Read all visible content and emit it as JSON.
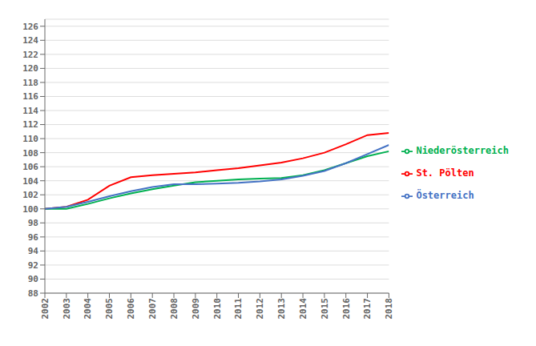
{
  "chart_data": {
    "type": "line",
    "x": [
      2002,
      2003,
      2004,
      2005,
      2006,
      2007,
      2008,
      2009,
      2010,
      2011,
      2012,
      2013,
      2014,
      2015,
      2016,
      2017,
      2018
    ],
    "series": [
      {
        "name": "St. Pölten",
        "color": "#ff0000",
        "values": [
          100.0,
          100.3,
          101.3,
          103.3,
          104.5,
          104.8,
          105.0,
          105.2,
          105.5,
          105.8,
          106.2,
          106.6,
          107.2,
          108.0,
          109.2,
          110.5,
          110.8
        ]
      },
      {
        "name": "Niederösterreich",
        "color": "#00b050",
        "values": [
          100.0,
          100.0,
          100.7,
          101.5,
          102.2,
          102.8,
          103.3,
          103.8,
          104.0,
          104.2,
          104.3,
          104.4,
          104.8,
          105.5,
          106.5,
          107.5,
          108.2
        ]
      },
      {
        "name": "Österreich",
        "color": "#4472c4",
        "values": [
          100.0,
          100.3,
          101.0,
          101.8,
          102.5,
          103.1,
          103.5,
          103.5,
          103.6,
          103.7,
          103.9,
          104.2,
          104.7,
          105.4,
          106.5,
          107.8,
          109.1
        ]
      }
    ],
    "xlim": [
      2002,
      2018
    ],
    "xticks": [
      2002,
      2003,
      2004,
      2005,
      2006,
      2007,
      2008,
      2009,
      2010,
      2011,
      2012,
      2013,
      2014,
      2015,
      2016,
      2017,
      2018
    ],
    "ylim": [
      88,
      127
    ],
    "yticks": [
      88,
      90,
      92,
      94,
      96,
      98,
      100,
      102,
      104,
      106,
      108,
      110,
      112,
      114,
      116,
      118,
      120,
      122,
      124,
      126
    ],
    "grid": true,
    "legend": "right"
  }
}
